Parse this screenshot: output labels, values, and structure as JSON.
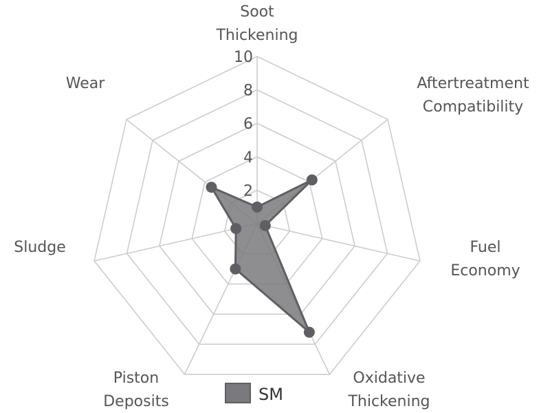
{
  "chart_data": {
    "type": "radar",
    "axes": [
      [
        "Soot",
        "Thickening"
      ],
      [
        "Aftertreatment",
        "Compatibility"
      ],
      [
        "Fuel",
        "Economy"
      ],
      [
        "Oxidative",
        "Thickening"
      ],
      [
        "Piston",
        "Deposits"
      ],
      [
        "Sludge"
      ],
      [
        "Wear"
      ]
    ],
    "rlim": [
      0,
      10
    ],
    "ticks": [
      "2",
      "4",
      "6",
      "8",
      "10"
    ],
    "grid": true,
    "legend_position": "bottom",
    "series": [
      {
        "name": "SM",
        "color": "#5f5f63",
        "fill": "#7a7a7e",
        "values": [
          1,
          4.2,
          0.5,
          7.2,
          3,
          1.3,
          3.5
        ]
      }
    ]
  }
}
